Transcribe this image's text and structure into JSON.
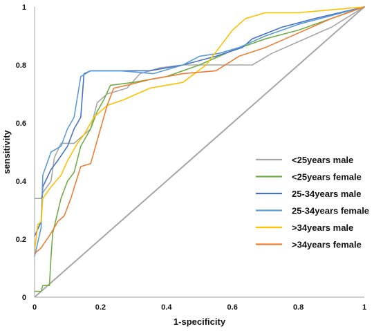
{
  "chart_data": {
    "type": "line",
    "title": "",
    "xlabel": "1-specificity",
    "ylabel": "sensitivity",
    "xlim": [
      0,
      1
    ],
    "ylim": [
      0,
      1
    ],
    "x_ticks": [
      "0",
      "0.2",
      "0.4",
      "0.6",
      "0.8",
      "1"
    ],
    "y_ticks": [
      "0",
      "0.2",
      "0.4",
      "0.6",
      "0.8",
      "1"
    ],
    "grid": false,
    "legend_position": "right",
    "reference_line": {
      "color": "#a6a6a6",
      "points": [
        [
          0,
          0
        ],
        [
          1,
          1
        ]
      ]
    },
    "series": [
      {
        "name": "<25years male",
        "color": "#a6a6a6",
        "points": [
          [
            0,
            0.34
          ],
          [
            0.02,
            0.34
          ],
          [
            0.025,
            0.36
          ],
          [
            0.05,
            0.4
          ],
          [
            0.06,
            0.48
          ],
          [
            0.08,
            0.53
          ],
          [
            0.12,
            0.53
          ],
          [
            0.14,
            0.55
          ],
          [
            0.17,
            0.58
          ],
          [
            0.19,
            0.67
          ],
          [
            0.22,
            0.7
          ],
          [
            0.28,
            0.72
          ],
          [
            0.32,
            0.77
          ],
          [
            0.38,
            0.79
          ],
          [
            0.45,
            0.8
          ],
          [
            0.55,
            0.8
          ],
          [
            0.66,
            0.8
          ],
          [
            0.72,
            0.84
          ],
          [
            0.8,
            0.88
          ],
          [
            0.9,
            0.93
          ],
          [
            1,
            1
          ]
        ]
      },
      {
        "name": "<25years female",
        "color": "#70ad47",
        "points": [
          [
            0,
            0.02
          ],
          [
            0.02,
            0.02
          ],
          [
            0.025,
            0.04
          ],
          [
            0.045,
            0.04
          ],
          [
            0.05,
            0.14
          ],
          [
            0.055,
            0.22
          ],
          [
            0.08,
            0.34
          ],
          [
            0.1,
            0.4
          ],
          [
            0.12,
            0.43
          ],
          [
            0.14,
            0.52
          ],
          [
            0.17,
            0.58
          ],
          [
            0.19,
            0.64
          ],
          [
            0.21,
            0.68
          ],
          [
            0.23,
            0.73
          ],
          [
            0.3,
            0.74
          ],
          [
            0.4,
            0.76
          ],
          [
            0.5,
            0.8
          ],
          [
            0.6,
            0.85
          ],
          [
            0.7,
            0.89
          ],
          [
            0.8,
            0.92
          ],
          [
            0.9,
            0.96
          ],
          [
            1,
            1
          ]
        ]
      },
      {
        "name": "25-34years male",
        "color": "#4472c4",
        "points": [
          [
            0,
            0.21
          ],
          [
            0.02,
            0.26
          ],
          [
            0.025,
            0.38
          ],
          [
            0.05,
            0.44
          ],
          [
            0.07,
            0.47
          ],
          [
            0.1,
            0.52
          ],
          [
            0.12,
            0.58
          ],
          [
            0.14,
            0.62
          ],
          [
            0.15,
            0.77
          ],
          [
            0.17,
            0.78
          ],
          [
            0.25,
            0.78
          ],
          [
            0.35,
            0.78
          ],
          [
            0.45,
            0.8
          ],
          [
            0.55,
            0.83
          ],
          [
            0.63,
            0.86
          ],
          [
            0.66,
            0.89
          ],
          [
            0.75,
            0.93
          ],
          [
            0.85,
            0.96
          ],
          [
            1,
            1
          ]
        ]
      },
      {
        "name": "25-34years female",
        "color": "#5b9bd5",
        "points": [
          [
            0,
            0.14
          ],
          [
            0.02,
            0.24
          ],
          [
            0.025,
            0.42
          ],
          [
            0.05,
            0.5
          ],
          [
            0.08,
            0.52
          ],
          [
            0.1,
            0.58
          ],
          [
            0.12,
            0.62
          ],
          [
            0.13,
            0.69
          ],
          [
            0.14,
            0.76
          ],
          [
            0.17,
            0.78
          ],
          [
            0.26,
            0.78
          ],
          [
            0.36,
            0.77
          ],
          [
            0.45,
            0.8
          ],
          [
            0.5,
            0.83
          ],
          [
            0.56,
            0.84
          ],
          [
            0.62,
            0.86
          ],
          [
            0.7,
            0.9
          ],
          [
            0.8,
            0.94
          ],
          [
            0.9,
            0.97
          ],
          [
            1,
            1
          ]
        ]
      },
      {
        "name": ">34years male",
        "color": "#ffc000",
        "points": [
          [
            0,
            0.16
          ],
          [
            0.01,
            0.25
          ],
          [
            0.02,
            0.26
          ],
          [
            0.025,
            0.34
          ],
          [
            0.05,
            0.38
          ],
          [
            0.08,
            0.42
          ],
          [
            0.1,
            0.47
          ],
          [
            0.13,
            0.53
          ],
          [
            0.15,
            0.56
          ],
          [
            0.18,
            0.62
          ],
          [
            0.22,
            0.66
          ],
          [
            0.27,
            0.68
          ],
          [
            0.35,
            0.72
          ],
          [
            0.45,
            0.74
          ],
          [
            0.52,
            0.8
          ],
          [
            0.56,
            0.86
          ],
          [
            0.6,
            0.92
          ],
          [
            0.64,
            0.96
          ],
          [
            0.7,
            0.98
          ],
          [
            0.8,
            0.98
          ],
          [
            0.9,
            0.99
          ],
          [
            1,
            1
          ]
        ]
      },
      {
        "name": ">34years female",
        "color": "#ed7d31",
        "points": [
          [
            0,
            0.15
          ],
          [
            0.02,
            0.17
          ],
          [
            0.05,
            0.22
          ],
          [
            0.07,
            0.26
          ],
          [
            0.09,
            0.28
          ],
          [
            0.11,
            0.34
          ],
          [
            0.14,
            0.45
          ],
          [
            0.17,
            0.46
          ],
          [
            0.2,
            0.58
          ],
          [
            0.22,
            0.66
          ],
          [
            0.24,
            0.72
          ],
          [
            0.28,
            0.73
          ],
          [
            0.35,
            0.75
          ],
          [
            0.45,
            0.77
          ],
          [
            0.55,
            0.78
          ],
          [
            0.62,
            0.83
          ],
          [
            0.7,
            0.86
          ],
          [
            0.8,
            0.91
          ],
          [
            0.9,
            0.96
          ],
          [
            1,
            1
          ]
        ]
      }
    ]
  }
}
